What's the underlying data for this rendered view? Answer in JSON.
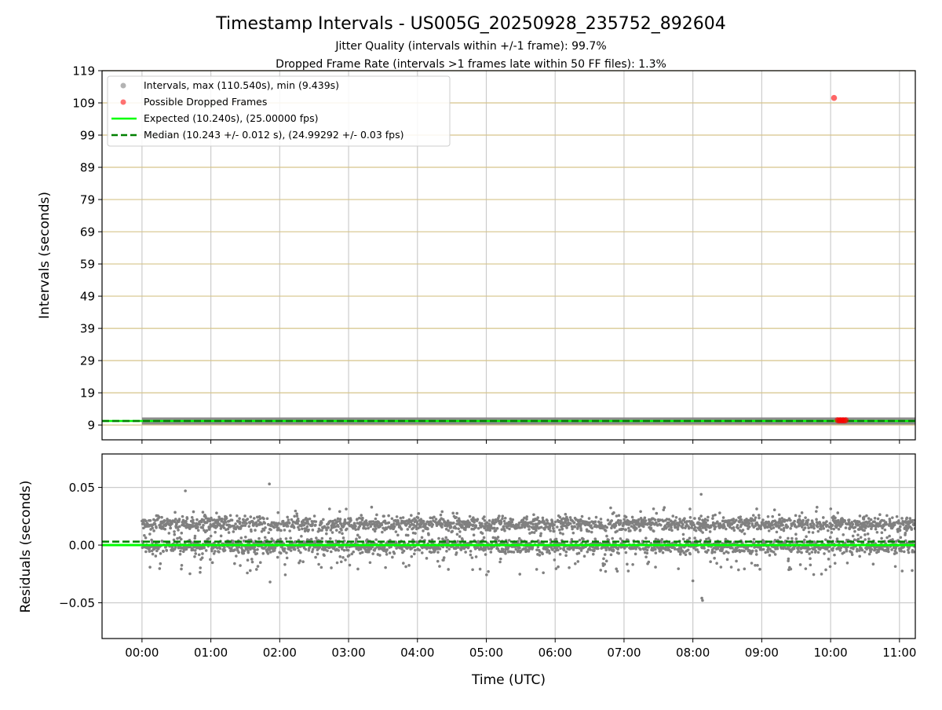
{
  "chart_data": [
    {
      "type": "scatter",
      "title": "Timestamp Intervals - US005G_20250928_235752_892604",
      "subtitle_lines": [
        "Jitter Quality (intervals within +/-1 frame): 99.7%",
        "Dropped Frame Rate (intervals >1 frames late within 50 FF files): 1.3%"
      ],
      "xlabel": "",
      "ylabel": "Intervals (seconds)",
      "xunit": "hours UTC",
      "xlim": [
        -0.58,
        11.23
      ],
      "ylim": [
        4.4,
        119
      ],
      "yticks": [
        9,
        19,
        29,
        39,
        49,
        59,
        69,
        79,
        89,
        99,
        109,
        119
      ],
      "ytick_labels": [
        "9",
        "19",
        "29",
        "39",
        "49",
        "59",
        "69",
        "79",
        "89",
        "99",
        "109",
        "119"
      ],
      "grid": true,
      "legend_position": "top-left",
      "legend": [
        "Intervals, max (110.540s), min (9.439s)",
        "Possible Dropped Frames",
        "Expected (10.240s), (25.00000 fps)",
        "Median (10.243 +/- 0.012 s), (24.99292 +/- 0.03 fps)"
      ],
      "expected_interval": 10.24,
      "median_interval": 10.243,
      "interval_series": {
        "x_start": 0.0,
        "x_end": 11.23,
        "typical": 10.24,
        "spread": 0.012
      },
      "dropped_frames": {
        "x": [
          10.05,
          10.1,
          10.12,
          10.14,
          10.16,
          10.18,
          10.2,
          10.22
        ],
        "y": [
          110.54,
          10.5,
          10.4,
          10.5,
          10.4,
          10.5,
          10.4,
          10.5
        ]
      },
      "colors": {
        "intervals": "#808080",
        "dropped": "#ff0000",
        "expected": "#00ff00",
        "median": "#008000",
        "hgrid": "#d6c48a",
        "vgrid": "#cccccc"
      }
    },
    {
      "type": "scatter",
      "xlabel": "Time (UTC)",
      "ylabel": "Residuals (seconds)",
      "xlim": [
        -0.58,
        11.23
      ],
      "ylim": [
        -0.081,
        0.079
      ],
      "yticks": [
        -0.05,
        0.0,
        0.05
      ],
      "ytick_labels": [
        "−0.05",
        "0.00",
        "0.05"
      ],
      "xticks": [
        0,
        1,
        2,
        3,
        4,
        5,
        6,
        7,
        8,
        9,
        10,
        11
      ],
      "xtick_labels": [
        "00:00",
        "01:00",
        "02:00",
        "03:00",
        "04:00",
        "05:00",
        "06:00",
        "07:00",
        "08:00",
        "09:00",
        "10:00",
        "11:00"
      ],
      "grid": true,
      "residual_clusters": [
        {
          "center": 0.018,
          "spread": 0.003,
          "weight": 0.5
        },
        {
          "center": -0.001,
          "spread": 0.003,
          "weight": 0.5
        }
      ],
      "scatter_fraction": 0.12,
      "n_points": 3950,
      "expected_residual": 0.0,
      "median_residual": 0.003,
      "outliers": {
        "x": [
          0.63,
          1.85,
          1.86,
          8.0,
          8.12,
          8.13,
          8.14
        ],
        "y": [
          0.047,
          0.053,
          -0.032,
          -0.031,
          0.044,
          -0.046,
          -0.048
        ]
      }
    }
  ]
}
